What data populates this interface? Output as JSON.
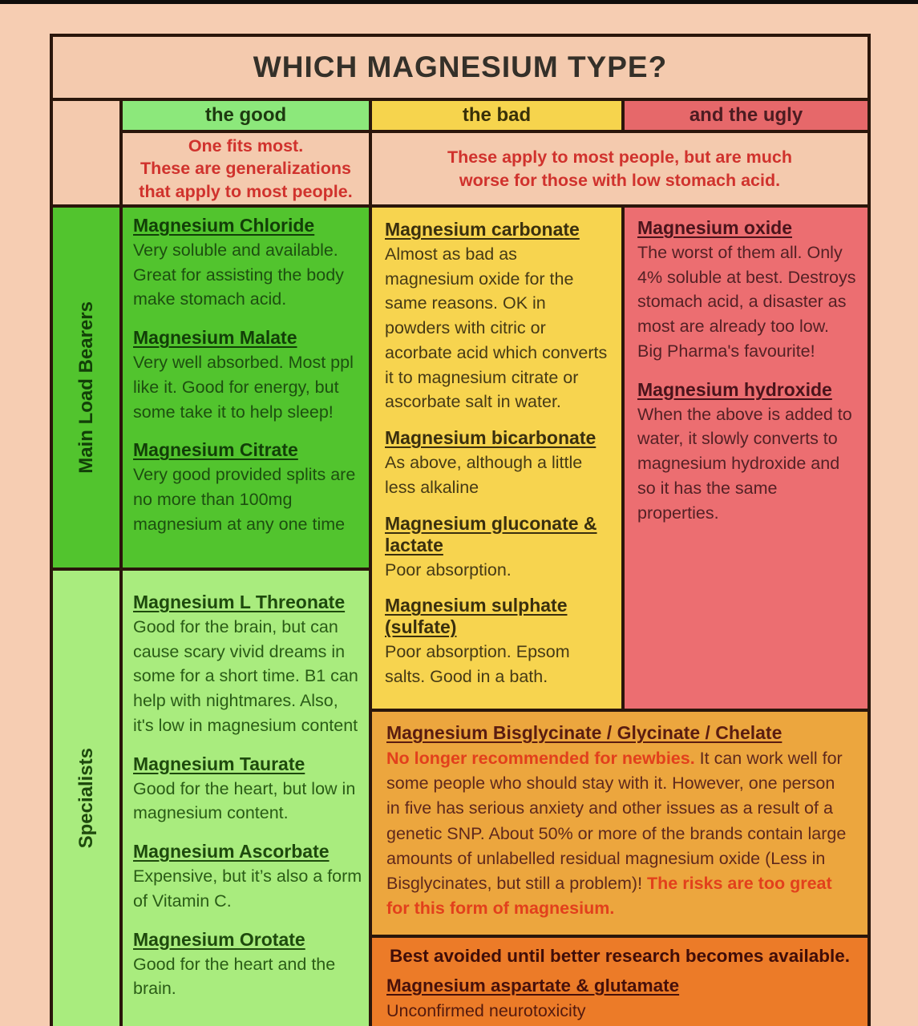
{
  "title": "WHICH MAGNESIUM TYPE?",
  "header": {
    "good": "the good",
    "bad": "the bad",
    "ugly": "and the ugly"
  },
  "subheader": {
    "good": "One fits most.\nThese are generalizations\nthat apply to most people.",
    "bad_ugly": "These apply to most people, but are much worse for those with low stomach acid."
  },
  "row_labels": {
    "main": "Main Load Bearers",
    "specialists": "Specialists"
  },
  "good_main": [
    {
      "name": "Magnesium Chloride",
      "desc": "Very soluble and available. Great for assisting the body make stomach acid."
    },
    {
      "name": "Magnesium Malate",
      "desc": "Very well absorbed. Most ppl like it. Good for energy, but some take it to help sleep!"
    },
    {
      "name": "Magnesium Citrate",
      "desc": "Very good provided splits are no more than 100mg magnesium at any one time"
    }
  ],
  "good_specialists": [
    {
      "name": "Magnesium L Threonate",
      "desc": "Good for the brain, but can cause scary vivid dreams in some for a short time. B1 can help with nightmares. Also, it's low in magnesium content"
    },
    {
      "name": "Magnesium Taurate",
      "desc": "Good for the heart, but low in magnesium content."
    },
    {
      "name": "Magnesium Ascorbate",
      "desc": "Expensive, but it’s also a form of Vitamin C."
    },
    {
      "name": "Magnesium Orotate",
      "desc": "Good for the heart and the brain."
    }
  ],
  "bad": [
    {
      "name": "Magnesium carbonate",
      "desc": "Almost as bad as magnesium oxide for the same reasons. OK in powders with citric or acorbate acid which converts it to magnesium citrate or ascorbate salt in water."
    },
    {
      "name": "Magnesium bicarbonate",
      "desc": "As above, although a little less alkaline"
    },
    {
      "name": "Magnesium gluconate & lactate",
      "desc": "Poor absorption."
    },
    {
      "name": "Magnesium sulphate (sulfate)",
      "desc": "Poor absorption. Epsom salts. Good in a bath."
    }
  ],
  "ugly": [
    {
      "name": "Magnesium oxide",
      "desc": "The worst of them all. Only 4% soluble at best. Destroys stomach acid, a disaster as most are already too low. Big Pharma's favourite!"
    },
    {
      "name": "Magnesium hydroxide",
      "desc": "When the above is added to water, it slowly converts to magnesium hydroxide and so it has the same properties."
    }
  ],
  "bisglycinate": {
    "heading": "Magnesium Bisglycinate / Glycinate / Chelate",
    "warn_lead": "No longer recommended for newbies.",
    "body": "  It can work well for some people who should stay with it. However, one person in five has serious anxiety and other issues as a result of a genetic SNP. About 50% or more of the brands contain large amounts of unlabelled residual magnesium oxide (Less in Bisglycinates, but still a problem)!   ",
    "warn_tail": "The risks are too great for this form of magnesium."
  },
  "avoid": {
    "heading": "Best avoided until better research becomes available.",
    "name": "Magnesium aspartate & glutamate",
    "desc": "Unconfirmed neurotoxicity"
  },
  "colors": {
    "page_background": "#f6cdb2",
    "border": "#2a160b",
    "good_header": "#8ce87b",
    "bad_header": "#f6d44d",
    "ugly_header": "#e6686a",
    "good_main_bg": "#52c42e",
    "good_specialists_bg": "#a9ec7e",
    "bad_bg": "#f7d44f",
    "ugly_bg": "#ec6e71",
    "bisglycinate_bg": "#eca63e",
    "avoid_bg": "#ec7b28",
    "warning_red": "#d0322d",
    "orange_warning_red": "#e2401c"
  }
}
